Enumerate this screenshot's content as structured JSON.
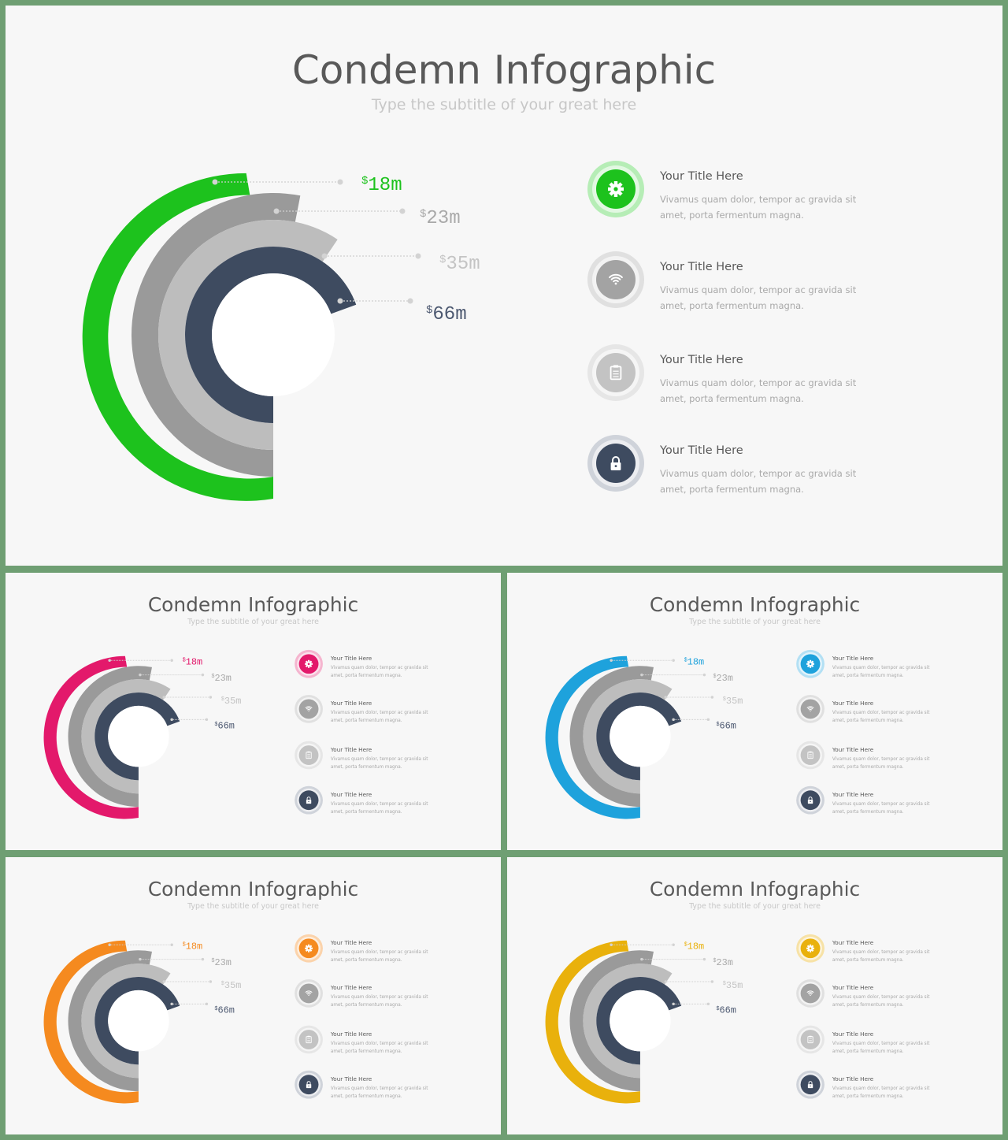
{
  "slides": [
    {
      "title": "Condemn Infographic",
      "subtitle": "Type the subtitle of your great here",
      "accent": "#1dc21d",
      "accent_light": "#b6edb6",
      "values": [
        "18m",
        "23m",
        "35m",
        "66m"
      ]
    },
    {
      "title": "Condemn Infographic",
      "subtitle": "Type the subtitle of your great here",
      "accent": "#e3196b",
      "accent_light": "#f5b5cf",
      "values": [
        "18m",
        "23m",
        "35m",
        "66m"
      ]
    },
    {
      "title": "Condemn Infographic",
      "subtitle": "Type the subtitle of your great here",
      "accent": "#1ea2dc",
      "accent_light": "#b3e0f4",
      "values": [
        "18m",
        "23m",
        "35m",
        "66m"
      ]
    },
    {
      "title": "Condemn Infographic",
      "subtitle": "Type the subtitle of your great here",
      "accent": "#f58a1f",
      "accent_light": "#fbd3ab",
      "values": [
        "18m",
        "23m",
        "35m",
        "66m"
      ]
    },
    {
      "title": "Condemn Infographic",
      "subtitle": "Type the subtitle of your great here",
      "accent": "#e9b10c",
      "accent_light": "#f7e2a6",
      "values": [
        "18m",
        "23m",
        "35m",
        "66m"
      ]
    }
  ],
  "currency_symbol": "$",
  "items": [
    {
      "icon": "gear-icon",
      "title": "Your Title Here",
      "desc_line1": "Vivamus quam dolor, tempor ac gravida sit",
      "desc_line2": "amet, porta fermentum  magna."
    },
    {
      "icon": "wifi-icon",
      "title": "Your Title Here",
      "desc_line1": "Vivamus quam dolor, tempor ac gravida sit",
      "desc_line2": "amet, porta fermentum  magna."
    },
    {
      "icon": "clipboard-icon",
      "title": "Your Title Here",
      "desc_line1": "Vivamus quam dolor, tempor ac gravida sit",
      "desc_line2": "amet, porta fermentum  magna."
    },
    {
      "icon": "lock-icon",
      "title": "Your Title Here",
      "desc_line1": "Vivamus quam dolor, tempor ac gravida sit",
      "desc_line2": "amet, porta fermentum  magna."
    }
  ],
  "colors": {
    "ring2": "#9a9a9a",
    "ring3": "#bdbdbd",
    "ring4": "#3e4b60",
    "icon_wifi": "#a3a3a3",
    "icon_clip": "#c3c3c3",
    "icon_lock": "#3e4b60"
  }
}
